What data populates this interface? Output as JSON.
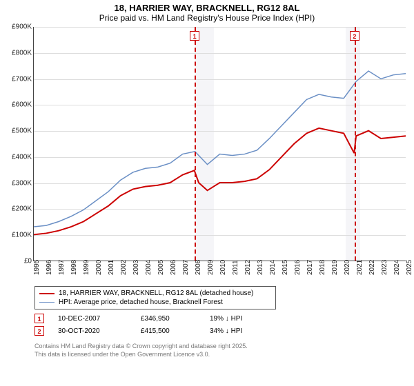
{
  "title": "18, HARRIER WAY, BRACKNELL, RG12 8AL",
  "subtitle": "Price paid vs. HM Land Registry's House Price Index (HPI)",
  "chart": {
    "type": "line",
    "ylim": [
      0,
      900000
    ],
    "ytick_step": 100000,
    "y_labels": [
      "£0",
      "£100K",
      "£200K",
      "£300K",
      "£400K",
      "£500K",
      "£600K",
      "£700K",
      "£800K",
      "£900K"
    ],
    "x_years": [
      1995,
      1996,
      1997,
      1998,
      1999,
      2000,
      2001,
      2002,
      2003,
      2004,
      2005,
      2006,
      2007,
      2008,
      2009,
      2010,
      2011,
      2012,
      2013,
      2014,
      2015,
      2016,
      2017,
      2018,
      2019,
      2020,
      2021,
      2022,
      2023,
      2024,
      2025
    ],
    "grid_color": "#dddddd",
    "background_color": "#ffffff",
    "shade_color": "#e8e8f0",
    "shade_ranges": [
      [
        2008.0,
        2009.5
      ],
      [
        2020.1,
        2021.3
      ]
    ],
    "markers": [
      {
        "id": "1",
        "year": 2007.95,
        "color": "#cc0000"
      },
      {
        "id": "2",
        "year": 2020.83,
        "color": "#cc0000"
      }
    ],
    "series": [
      {
        "name": "18, HARRIER WAY, BRACKNELL, RG12 8AL (detached house)",
        "color": "#cc0000",
        "width": 2,
        "points": [
          [
            1995,
            100000
          ],
          [
            1996,
            105000
          ],
          [
            1997,
            115000
          ],
          [
            1998,
            130000
          ],
          [
            1999,
            150000
          ],
          [
            2000,
            180000
          ],
          [
            2001,
            210000
          ],
          [
            2002,
            250000
          ],
          [
            2003,
            275000
          ],
          [
            2004,
            285000
          ],
          [
            2005,
            290000
          ],
          [
            2006,
            300000
          ],
          [
            2007,
            330000
          ],
          [
            2007.95,
            346950
          ],
          [
            2008.3,
            300000
          ],
          [
            2009,
            270000
          ],
          [
            2010,
            300000
          ],
          [
            2011,
            300000
          ],
          [
            2012,
            305000
          ],
          [
            2013,
            315000
          ],
          [
            2014,
            350000
          ],
          [
            2015,
            400000
          ],
          [
            2016,
            450000
          ],
          [
            2017,
            490000
          ],
          [
            2018,
            510000
          ],
          [
            2019,
            500000
          ],
          [
            2020,
            490000
          ],
          [
            2020.82,
            415500
          ],
          [
            2020.84,
            415500
          ],
          [
            2021,
            480000
          ],
          [
            2022,
            500000
          ],
          [
            2023,
            470000
          ],
          [
            2024,
            475000
          ],
          [
            2025,
            480000
          ]
        ]
      },
      {
        "name": "HPI: Average price, detached house, Bracknell Forest",
        "color": "#6a8fc5",
        "width": 1.5,
        "points": [
          [
            1995,
            130000
          ],
          [
            1996,
            135000
          ],
          [
            1997,
            150000
          ],
          [
            1998,
            170000
          ],
          [
            1999,
            195000
          ],
          [
            2000,
            230000
          ],
          [
            2001,
            265000
          ],
          [
            2002,
            310000
          ],
          [
            2003,
            340000
          ],
          [
            2004,
            355000
          ],
          [
            2005,
            360000
          ],
          [
            2006,
            375000
          ],
          [
            2007,
            410000
          ],
          [
            2008,
            420000
          ],
          [
            2009,
            370000
          ],
          [
            2010,
            410000
          ],
          [
            2011,
            405000
          ],
          [
            2012,
            410000
          ],
          [
            2013,
            425000
          ],
          [
            2014,
            470000
          ],
          [
            2015,
            520000
          ],
          [
            2016,
            570000
          ],
          [
            2017,
            620000
          ],
          [
            2018,
            640000
          ],
          [
            2019,
            630000
          ],
          [
            2020,
            625000
          ],
          [
            2021,
            690000
          ],
          [
            2022,
            730000
          ],
          [
            2023,
            700000
          ],
          [
            2024,
            715000
          ],
          [
            2025,
            720000
          ]
        ]
      }
    ]
  },
  "legend_items": [
    {
      "color": "#cc0000",
      "width": 2,
      "label": "18, HARRIER WAY, BRACKNELL, RG12 8AL (detached house)"
    },
    {
      "color": "#6a8fc5",
      "width": 1.5,
      "label": "HPI: Average price, detached house, Bracknell Forest"
    }
  ],
  "notes": [
    {
      "id": "1",
      "color": "#cc0000",
      "date": "10-DEC-2007",
      "price": "£346,950",
      "diff": "19% ↓ HPI"
    },
    {
      "id": "2",
      "color": "#cc0000",
      "date": "30-OCT-2020",
      "price": "£415,500",
      "diff": "34% ↓ HPI"
    }
  ],
  "attribution": {
    "line1": "Contains HM Land Registry data © Crown copyright and database right 2025.",
    "line2": "This data is licensed under the Open Government Licence v3.0."
  }
}
